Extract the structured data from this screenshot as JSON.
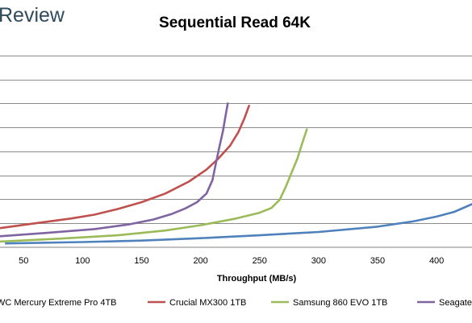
{
  "brand": {
    "text": "Review"
  },
  "chart_data": {
    "type": "line",
    "title": "Sequential Read 64K",
    "xlabel": "Throughput (MB/s)",
    "ylabel": "",
    "xlim": [
      30,
      430
    ],
    "ylim": [
      0,
      8.4
    ],
    "x_ticks": [
      "50",
      "100",
      "150",
      "200",
      "250",
      "300",
      "350",
      "400"
    ],
    "y_gridlines": 8,
    "legend_position": "bottom",
    "series": [
      {
        "name": "WC Mercury Extreme Pro 4TB",
        "color": "#4f81bd",
        "points": [
          [
            35,
            0.16
          ],
          [
            60,
            0.18
          ],
          [
            100,
            0.22
          ],
          [
            150,
            0.28
          ],
          [
            200,
            0.38
          ],
          [
            250,
            0.5
          ],
          [
            300,
            0.64
          ],
          [
            350,
            0.86
          ],
          [
            380,
            1.08
          ],
          [
            400,
            1.28
          ],
          [
            415,
            1.48
          ],
          [
            430,
            1.8
          ]
        ]
      },
      {
        "name": "Crucial MX300 1TB",
        "color": "#c0504d",
        "points": [
          [
            30,
            0.8
          ],
          [
            60,
            1.0
          ],
          [
            90,
            1.2
          ],
          [
            110,
            1.36
          ],
          [
            130,
            1.6
          ],
          [
            150,
            1.88
          ],
          [
            170,
            2.24
          ],
          [
            190,
            2.74
          ],
          [
            205,
            3.24
          ],
          [
            215,
            3.7
          ],
          [
            225,
            4.24
          ],
          [
            232,
            4.8
          ],
          [
            237,
            5.36
          ],
          [
            241,
            5.9
          ]
        ]
      },
      {
        "name": "Samsung 860 EVO 1TB",
        "color": "#9bbb59",
        "points": [
          [
            30,
            0.24
          ],
          [
            80,
            0.36
          ],
          [
            130,
            0.5
          ],
          [
            170,
            0.7
          ],
          [
            200,
            0.92
          ],
          [
            230,
            1.2
          ],
          [
            250,
            1.44
          ],
          [
            260,
            1.64
          ],
          [
            267,
            1.98
          ],
          [
            272,
            2.5
          ],
          [
            277,
            3.1
          ],
          [
            282,
            3.7
          ],
          [
            286,
            4.32
          ],
          [
            290,
            4.92
          ]
        ]
      },
      {
        "name": "Seagate",
        "color": "#8064a2",
        "points": [
          [
            30,
            0.46
          ],
          [
            70,
            0.6
          ],
          [
            110,
            0.76
          ],
          [
            140,
            0.96
          ],
          [
            160,
            1.16
          ],
          [
            175,
            1.38
          ],
          [
            187,
            1.62
          ],
          [
            197,
            1.88
          ],
          [
            205,
            2.24
          ],
          [
            210,
            2.8
          ],
          [
            213,
            3.5
          ],
          [
            216,
            4.2
          ],
          [
            219,
            4.86
          ],
          [
            221,
            5.44
          ],
          [
            223,
            6.0
          ]
        ]
      }
    ]
  }
}
